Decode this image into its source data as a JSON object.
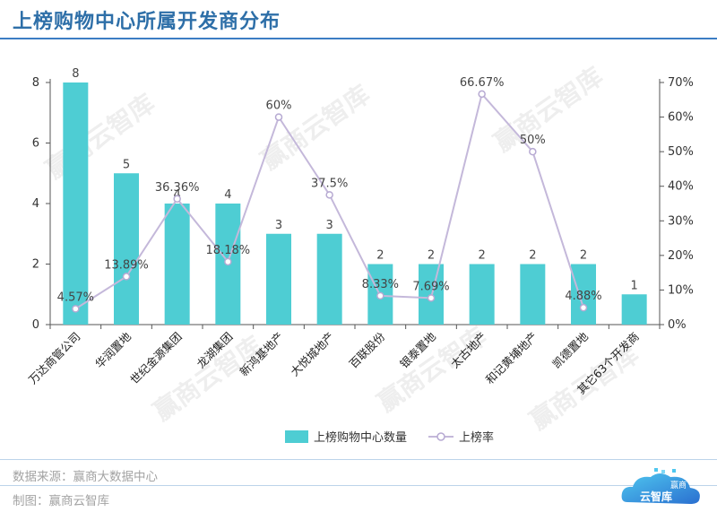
{
  "header": {
    "title": "上榜购物中心所属开发商分布"
  },
  "footer": {
    "source": "数据来源：赢商大数据中心",
    "made_by": "制图：赢商云智库"
  },
  "watermark": {
    "text": "赢商云智库"
  },
  "logo": {
    "line1": "赢商",
    "line2": "云智库"
  },
  "chart_data": {
    "type": "bar",
    "categories": [
      "万达商管公司",
      "华润置地",
      "世纪金源集团",
      "龙湖集团",
      "新鸿基地产",
      "大悦城地产",
      "百联股份",
      "银泰置地",
      "太古地产",
      "和记黄埔地产",
      "凯德置地",
      "其它63个开发商"
    ],
    "series": [
      {
        "name": "上榜购物中心数量",
        "type": "bar",
        "axis": "left",
        "color": "#4ecdd3",
        "values": [
          8,
          5,
          4,
          4,
          3,
          3,
          2,
          2,
          2,
          2,
          2,
          1
        ]
      },
      {
        "name": "上榜率",
        "type": "line",
        "axis": "right",
        "color": "#c4b8da",
        "values": [
          4.57,
          13.89,
          36.36,
          18.18,
          60,
          37.5,
          8.33,
          7.69,
          66.67,
          50,
          4.88,
          null
        ],
        "labels": [
          "4.57%",
          "13.89%",
          "36.36%",
          "18.18%",
          "60%",
          "37.5%",
          "8.33%",
          "7.69%",
          "66.67%",
          "50%",
          "4.88%",
          ""
        ]
      }
    ],
    "y_left": {
      "ticks": [
        "0",
        "2",
        "4",
        "6",
        "8"
      ],
      "range": [
        0,
        8
      ]
    },
    "y_right": {
      "ticks": [
        "0%",
        "10%",
        "20%",
        "30%",
        "40%",
        "50%",
        "60%",
        "70%"
      ],
      "range": [
        0,
        70
      ]
    },
    "grid": false,
    "legend": "bottom-center"
  }
}
